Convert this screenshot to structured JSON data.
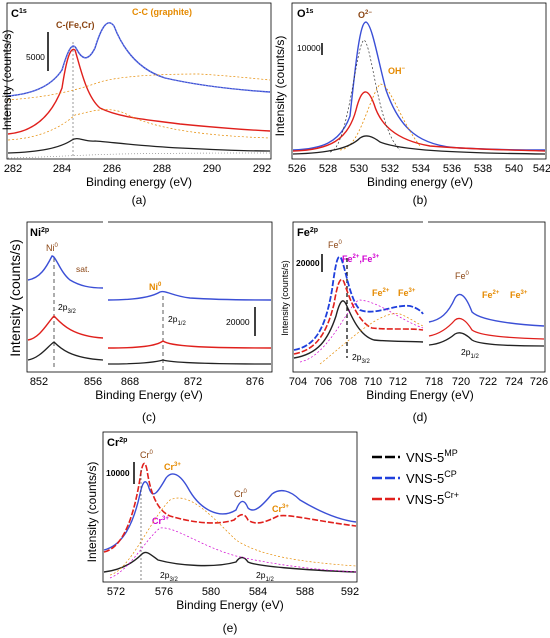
{
  "panels": [
    {
      "id": "a",
      "caption": "(a)",
      "title_main": "C",
      "title_sup": "1s",
      "xlabel": "Binding energy (eV)",
      "ylabel": "Intensity (counts/s)",
      "xticks": [
        "282",
        "284",
        "286",
        "288",
        "290",
        "292"
      ],
      "scale_label": "5000",
      "annotations": [
        {
          "text": "C-(Fe,Cr)",
          "color": "#8b4513"
        },
        {
          "text": "C-C (graphite)",
          "color": "#e58a00"
        }
      ]
    },
    {
      "id": "b",
      "caption": "(b)",
      "title_main": "O",
      "title_sup": "1s",
      "xlabel": "Binding energy (eV)",
      "ylabel": "Intensity (counts/s)",
      "xticks": [
        "526",
        "528",
        "530",
        "532",
        "534",
        "536",
        "538",
        "540",
        "542"
      ],
      "scale_label": "10000",
      "annotations": [
        {
          "text": "O",
          "sup": "2−",
          "color": "#8b4513"
        },
        {
          "text": "OH",
          "sup": "−",
          "color": "#e58a00"
        }
      ]
    },
    {
      "id": "c",
      "caption": "(c)",
      "title_main": "Ni",
      "title_sup": "2p",
      "xlabel": "Binding Energy (eV)",
      "ylabel": "Intensity (counts/s)",
      "xticks": [
        "852",
        "856",
        "868",
        "872",
        "876"
      ],
      "scale_label": "20000",
      "annotations": [
        {
          "text": "Ni",
          "sup": "0",
          "color": "#8b4513"
        },
        {
          "text": "sat.",
          "color": "#8b4513"
        },
        {
          "text": "Ni",
          "sup": "0",
          "color": "#e58a00"
        },
        {
          "text": "2p",
          "sub": "3/2",
          "color": "#000000"
        },
        {
          "text": "2p",
          "sub": "1/2",
          "color": "#000000"
        }
      ]
    },
    {
      "id": "d",
      "caption": "(d)",
      "title_main": "Fe",
      "title_sup": "2p",
      "xlabel": "Binding Energy (eV)",
      "ylabel": "Intensity (counts/s)",
      "xticks": [
        "704",
        "706",
        "708",
        "710",
        "712",
        "718",
        "720",
        "722",
        "724",
        "726"
      ],
      "scale_label": "20000",
      "annotations": [
        {
          "text": "Fe",
          "sup": "0",
          "color": "#8b4513"
        },
        {
          "text": "Fe",
          "sup": "2+",
          "color": "#d100d1"
        },
        {
          "text": ",Fe",
          "sup": "3+",
          "color": "#d100d1"
        },
        {
          "text": "Fe",
          "sup": "2+",
          "color": "#e58a00"
        },
        {
          "text": "Fe",
          "sup": "3+",
          "color": "#e58a00"
        },
        {
          "text": "Fe",
          "sup": "0",
          "color": "#8b4513"
        },
        {
          "text": "Fe",
          "sup": "2+",
          "color": "#e58a00"
        },
        {
          "text": "Fe",
          "sup": "3+",
          "color": "#e58a00"
        },
        {
          "text": "2p",
          "sub": "3/2",
          "color": "#000000"
        },
        {
          "text": "2p",
          "sub": "1/2",
          "color": "#000000"
        }
      ]
    },
    {
      "id": "e",
      "caption": "(e)",
      "title_main": "Cr",
      "title_sup": "2p",
      "xlabel": "Binding Energy (eV)",
      "ylabel": "Intensity (counts/s)",
      "xticks": [
        "572",
        "576",
        "580",
        "584",
        "588",
        "592"
      ],
      "scale_label": "10000",
      "annotations": [
        {
          "text": "Cr",
          "sup": "0",
          "color": "#8b4513"
        },
        {
          "text": "Cr",
          "sup": "3+",
          "color": "#e58a00"
        },
        {
          "text": "Cr",
          "sup": "3+",
          "color": "#d100d1"
        },
        {
          "text": "Cr",
          "sup": "0",
          "color": "#8b4513"
        },
        {
          "text": "Cr",
          "sup": "3+",
          "color": "#e58a00"
        },
        {
          "text": "2p",
          "sub": "3/2",
          "color": "#000000"
        },
        {
          "text": "2p",
          "sub": "1/2",
          "color": "#000000"
        }
      ]
    }
  ],
  "legend": [
    {
      "label": "VNS-5",
      "sup": "MP",
      "color": "#000000"
    },
    {
      "label": "VNS-5",
      "sup": "CP",
      "color": "#1f3fdc"
    },
    {
      "label": "VNS-5",
      "sup": "Cr+",
      "color": "#e0201c"
    }
  ],
  "chart_data": [
    {
      "type": "line",
      "title": "C1s",
      "xlabel": "Binding energy (eV)",
      "ylabel": "Intensity (counts/s)",
      "xlim": [
        281,
        292
      ],
      "x_reversed": false,
      "series": [
        {
          "name": "VNS-5CP",
          "x": [
            281,
            282,
            283,
            283.4,
            284,
            285,
            286,
            287,
            288,
            290,
            292
          ],
          "y": [
            0.55,
            0.6,
            0.7,
            0.82,
            0.75,
            1.0,
            0.72,
            0.6,
            0.56,
            0.54,
            0.52
          ]
        },
        {
          "name": "VNS-5Cr+",
          "x": [
            281,
            282,
            283,
            283.4,
            284,
            285,
            286,
            287,
            288,
            290,
            292
          ],
          "y": [
            0.25,
            0.3,
            0.6,
            0.88,
            0.5,
            0.42,
            0.35,
            0.3,
            0.26,
            0.22,
            0.2
          ]
        },
        {
          "name": "VNS-5MP",
          "x": [
            281,
            282,
            283,
            283.3,
            284,
            285,
            286,
            288,
            290,
            292
          ],
          "y": [
            0.04,
            0.05,
            0.12,
            0.16,
            0.1,
            0.13,
            0.08,
            0.05,
            0.04,
            0.03
          ]
        }
      ]
    },
    {
      "type": "line",
      "title": "O1s",
      "xlabel": "Binding energy (eV)",
      "ylabel": "Intensity (counts/s)",
      "xlim": [
        526,
        542
      ],
      "series": [
        {
          "name": "VNS-5CP",
          "x": [
            526,
            528,
            529.5,
            530.5,
            531.5,
            532.5,
            534,
            536,
            538,
            542
          ],
          "y": [
            0.05,
            0.1,
            0.5,
            1.0,
            0.78,
            0.45,
            0.15,
            0.08,
            0.06,
            0.05
          ]
        },
        {
          "name": "VNS-5Cr+",
          "x": [
            526,
            528,
            529.5,
            530.5,
            531.5,
            533,
            535,
            538,
            542
          ],
          "y": [
            0.04,
            0.08,
            0.3,
            0.55,
            0.42,
            0.15,
            0.07,
            0.05,
            0.04
          ]
        },
        {
          "name": "VNS-5MP",
          "x": [
            526,
            528,
            529.5,
            530.5,
            531.5,
            533,
            535,
            538,
            542
          ],
          "y": [
            0.02,
            0.04,
            0.1,
            0.2,
            0.15,
            0.06,
            0.03,
            0.02,
            0.02
          ]
        }
      ]
    },
    {
      "type": "line",
      "title": "Ni2p",
      "xlabel": "Binding Energy (eV)",
      "ylabel": "Intensity (counts/s)",
      "axis_break": [
        857,
        866
      ],
      "series": [
        {
          "name": "VNS-5CP",
          "x": [
            851,
            852,
            853,
            854,
            855,
            857,
            866,
            868,
            870,
            871,
            872,
            874,
            876,
            878
          ],
          "y": [
            0.82,
            0.85,
            1.0,
            0.9,
            0.86,
            0.85,
            0.82,
            0.82,
            0.85,
            0.88,
            0.84,
            0.84,
            0.83,
            0.83
          ]
        },
        {
          "name": "VNS-5Cr+",
          "x": [
            851,
            852,
            853,
            854,
            855,
            857,
            866,
            868,
            870,
            871,
            872,
            874,
            876,
            878
          ],
          "y": [
            0.35,
            0.4,
            0.52,
            0.42,
            0.4,
            0.38,
            0.36,
            0.36,
            0.38,
            0.42,
            0.37,
            0.38,
            0.37,
            0.37
          ]
        },
        {
          "name": "VNS-5MP",
          "x": [
            851,
            852,
            853,
            854,
            855,
            857,
            866,
            868,
            870,
            871,
            872,
            874,
            876,
            878
          ],
          "y": [
            0.15,
            0.2,
            0.3,
            0.22,
            0.18,
            0.16,
            0.15,
            0.15,
            0.17,
            0.2,
            0.17,
            0.17,
            0.16,
            0.16
          ]
        }
      ]
    },
    {
      "type": "line",
      "title": "Fe2p",
      "xlabel": "Binding Energy (eV)",
      "ylabel": "Intensity (counts/s)",
      "axis_break": [
        713,
        717.5
      ],
      "series": [
        {
          "name": "VNS-5CP",
          "x": [
            704,
            705,
            706,
            706.8,
            707.5,
            708.5,
            710,
            711,
            712,
            713,
            718,
            719,
            720,
            721,
            722,
            724,
            726
          ],
          "y": [
            0.15,
            0.3,
            0.7,
            1.0,
            0.7,
            0.5,
            0.55,
            0.5,
            0.45,
            0.44,
            0.42,
            0.5,
            0.72,
            0.55,
            0.45,
            0.4,
            0.38
          ]
        },
        {
          "name": "VNS-5Cr+",
          "x": [
            704,
            705,
            706,
            707,
            707.5,
            708.5,
            710,
            711,
            712,
            713,
            718,
            719,
            720,
            721,
            722,
            724,
            726
          ],
          "y": [
            0.12,
            0.25,
            0.6,
            0.88,
            0.72,
            0.5,
            0.42,
            0.4,
            0.35,
            0.34,
            0.3,
            0.36,
            0.48,
            0.4,
            0.34,
            0.3,
            0.28
          ]
        },
        {
          "name": "VNS-5MP",
          "x": [
            704,
            705,
            706,
            707,
            707.8,
            708.5,
            710,
            711,
            712,
            713,
            718,
            719,
            720,
            721,
            722,
            724,
            726
          ],
          "y": [
            0.1,
            0.2,
            0.5,
            0.82,
            0.62,
            0.42,
            0.34,
            0.3,
            0.28,
            0.27,
            0.24,
            0.3,
            0.4,
            0.32,
            0.28,
            0.25,
            0.24
          ]
        }
      ]
    },
    {
      "type": "line",
      "title": "Cr2p",
      "xlabel": "Binding Energy (eV)",
      "ylabel": "Intensity (counts/s)",
      "xlim": [
        570,
        592
      ],
      "series": [
        {
          "name": "VNS-5CP",
          "x": [
            570,
            572,
            573.5,
            574.2,
            575,
            576.5,
            577,
            578,
            580,
            582,
            583,
            583.6,
            584.5,
            586,
            587,
            588,
            590,
            592
          ],
          "y": [
            0.35,
            0.4,
            0.6,
            0.85,
            0.72,
            0.82,
            0.84,
            0.76,
            0.52,
            0.45,
            0.5,
            0.62,
            0.55,
            0.6,
            0.62,
            0.58,
            0.42,
            0.38
          ]
        },
        {
          "name": "VNS-5Cr+",
          "x": [
            570,
            572,
            573.5,
            574.2,
            575,
            576,
            577,
            578,
            580,
            582,
            583,
            583.6,
            584.5,
            586,
            587,
            588,
            590,
            592
          ],
          "y": [
            0.3,
            0.35,
            0.6,
            1.0,
            0.6,
            0.5,
            0.48,
            0.44,
            0.36,
            0.34,
            0.38,
            0.5,
            0.42,
            0.44,
            0.46,
            0.44,
            0.36,
            0.32
          ]
        },
        {
          "name": "VNS-5MP",
          "x": [
            570,
            572,
            573.5,
            574.2,
            575,
            576,
            578,
            580,
            582,
            583,
            583.6,
            584.5,
            586,
            588,
            590,
            592
          ],
          "y": [
            0.05,
            0.08,
            0.14,
            0.22,
            0.15,
            0.1,
            0.08,
            0.06,
            0.06,
            0.1,
            0.16,
            0.12,
            0.08,
            0.07,
            0.05,
            0.04
          ]
        }
      ]
    }
  ]
}
